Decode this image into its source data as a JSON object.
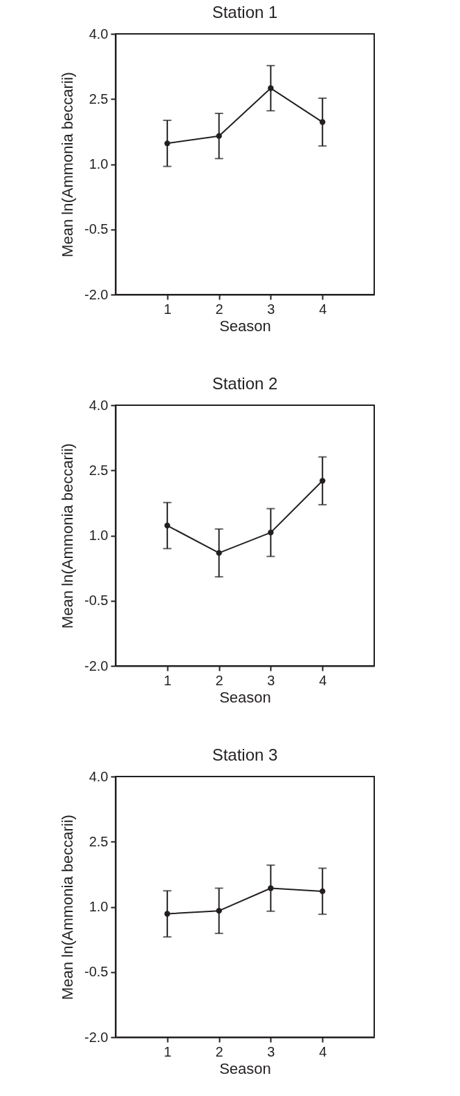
{
  "chart_data": [
    {
      "type": "line",
      "title": "Station 1",
      "xlabel": "Season",
      "ylabel": "Mean ln(Ammonia beccarii)",
      "x": [
        1,
        2,
        3,
        4
      ],
      "xlim": [
        0,
        5
      ],
      "xticks": [
        1,
        2,
        3,
        4
      ],
      "ylim": [
        -2,
        4
      ],
      "yticks": [
        {
          "value": -2,
          "label": "-2.0"
        },
        {
          "value": -0.5,
          "label": "-0.5"
        },
        {
          "value": 1,
          "label": "1.0"
        },
        {
          "value": 2.5,
          "label": "2.5"
        },
        {
          "value": 4,
          "label": "4.0"
        }
      ],
      "marker": "circle",
      "series": [
        {
          "color": "#231f20",
          "values": [
            1.48,
            1.65,
            2.75,
            1.97
          ],
          "errors": [
            0.53,
            0.52,
            0.52,
            0.55
          ]
        }
      ]
    },
    {
      "type": "line",
      "title": "Station 2",
      "xlabel": "Season",
      "ylabel": "Mean ln(Ammonia beccarii)",
      "x": [
        1,
        2,
        3,
        4
      ],
      "xlim": [
        0,
        5
      ],
      "xticks": [
        1,
        2,
        3,
        4
      ],
      "ylim": [
        -2,
        4
      ],
      "yticks": [
        {
          "value": -2,
          "label": "-2.0"
        },
        {
          "value": -0.5,
          "label": "-0.5"
        },
        {
          "value": 1,
          "label": "1.0"
        },
        {
          "value": 2.5,
          "label": "2.5"
        },
        {
          "value": 4,
          "label": "4.0"
        }
      ],
      "marker": "circle",
      "series": [
        {
          "color": "#231f20",
          "values": [
            1.23,
            0.6,
            1.07,
            2.26
          ],
          "errors": [
            0.53,
            0.55,
            0.55,
            0.55
          ]
        }
      ]
    },
    {
      "type": "line",
      "title": "Station 3",
      "xlabel": "Season",
      "ylabel": "Mean ln(Ammonia beccarii)",
      "x": [
        1,
        2,
        3,
        4
      ],
      "xlim": [
        0,
        5
      ],
      "xticks": [
        1,
        2,
        3,
        4
      ],
      "ylim": [
        -2,
        4
      ],
      "yticks": [
        {
          "value": -2,
          "label": "-2.0"
        },
        {
          "value": -0.5,
          "label": "-0.5"
        },
        {
          "value": 1,
          "label": "1.0"
        },
        {
          "value": 2.5,
          "label": "2.5"
        },
        {
          "value": 4,
          "label": "4.0"
        }
      ],
      "marker": "circle",
      "series": [
        {
          "color": "#231f20",
          "values": [
            0.84,
            0.91,
            1.43,
            1.36
          ],
          "errors": [
            0.53,
            0.52,
            0.53,
            0.53
          ]
        }
      ]
    }
  ]
}
